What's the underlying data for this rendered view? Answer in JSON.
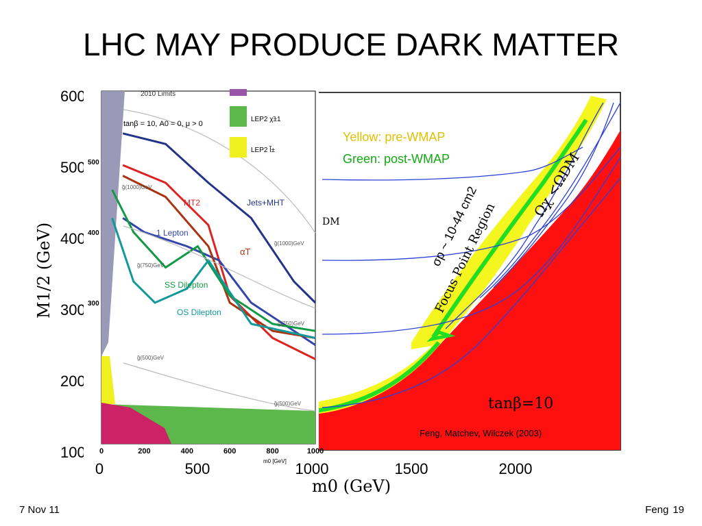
{
  "slide": {
    "title": "LHC MAY PRODUCE DARK MATTER",
    "date": "7 Nov 11",
    "author": "Feng",
    "page": "19"
  },
  "colors": {
    "red_excluded": "#ff1010",
    "yellow_prewmap": "#f5f520",
    "green_postwmap": "#22dd22",
    "blue_contours": "#2a3fd8",
    "lep2_chargino": "#5cb84a",
    "lep2_slepton": "#f0f020",
    "left_excluded_band": "#9a9ab8"
  },
  "chart_data": [
    {
      "type": "line",
      "panel": "background",
      "xlabel": "m0  (GeV)",
      "ylabel": "M1/2  (GeV)",
      "xticks": [
        "0",
        "500",
        "1000",
        "1500",
        "2000"
      ],
      "yticks": [
        "100",
        "200",
        "300",
        "400",
        "500",
        "600"
      ],
      "xlim": [
        0,
        2500
      ],
      "ylim": [
        100,
        600
      ],
      "legend": [
        "Yellow: pre-WMAP",
        "Green: post-WMAP"
      ],
      "annotations": {
        "focus_point": "Focus Point Region",
        "sigma_p": "σp ~ 10-44 cm2",
        "omega": "Ωχ <ΩDM",
        "tanbeta": "tanβ=10",
        "citation": "Feng, Matchev, Wilczek (2003)",
        "dm_fragment": "DM"
      },
      "series": [
        {
          "name": "Yellow: pre-WMAP",
          "x": [
            1000,
            1300,
            1500,
            1700,
            1900,
            2100
          ],
          "y": [
            165,
            215,
            300,
            420,
            540,
            600
          ]
        },
        {
          "name": "Green: post-WMAP",
          "x": [
            1000,
            1350,
            1600,
            1700,
            1850,
            2100
          ],
          "y": [
            160,
            210,
            300,
            400,
            520,
            600
          ]
        }
      ]
    },
    {
      "type": "line",
      "panel": "inset",
      "xlabel": "m0 [GeV]",
      "xticks": [
        "0",
        "200",
        "400",
        "600",
        "800",
        "1000"
      ],
      "yticks": [
        "300",
        "400",
        "500"
      ],
      "xlim": [
        0,
        1000
      ],
      "labels": {
        "limits": "2010 Limits",
        "params": "tanβ = 10,  A0 = 0,  μ > 0",
        "lep2_chi": "LEP2 χ̃±1",
        "lep2_l": "LEP2 l̃±",
        "jets_mht": "Jets+MHT",
        "mt2": "MT2",
        "one_lepton": "1 Lepton",
        "alpha_t": "αT",
        "ss_dilepton": "SS Dilepton",
        "os_dilepton": "OS Dilepton",
        "g1000a": "g̃(1000)GeV",
        "g1000b": "g̃(1000)GeV",
        "g750a": "g̃(750)GeV",
        "g750b": "g̃(750)GeV",
        "g500a": "g̃(500)GeV",
        "g500b": "g̃(500)GeV"
      },
      "series": [
        {
          "name": "Jets+MHT",
          "x": [
            100,
            300,
            500,
            700,
            900,
            1000
          ],
          "y": [
            540,
            525,
            470,
            420,
            330,
            300
          ]
        },
        {
          "name": "MT2",
          "x": [
            100,
            300,
            500,
            600,
            800,
            1000
          ],
          "y": [
            495,
            470,
            410,
            310,
            250,
            220
          ]
        },
        {
          "name": "1 Lepton",
          "x": [
            100,
            200,
            400,
            550,
            700,
            1000
          ],
          "y": [
            420,
            400,
            380,
            360,
            300,
            240
          ]
        },
        {
          "name": "αT",
          "x": [
            100,
            300,
            500,
            600,
            800,
            1000
          ],
          "y": [
            480,
            450,
            380,
            300,
            260,
            250
          ]
        },
        {
          "name": "SS Dilepton",
          "x": [
            50,
            150,
            300,
            450,
            600,
            800,
            1000
          ],
          "y": [
            460,
            400,
            350,
            380,
            310,
            270,
            260
          ]
        },
        {
          "name": "OS Dilepton",
          "x": [
            50,
            150,
            250,
            400,
            500,
            700,
            1000
          ],
          "y": [
            420,
            330,
            300,
            320,
            360,
            270,
            250
          ]
        }
      ]
    }
  ]
}
